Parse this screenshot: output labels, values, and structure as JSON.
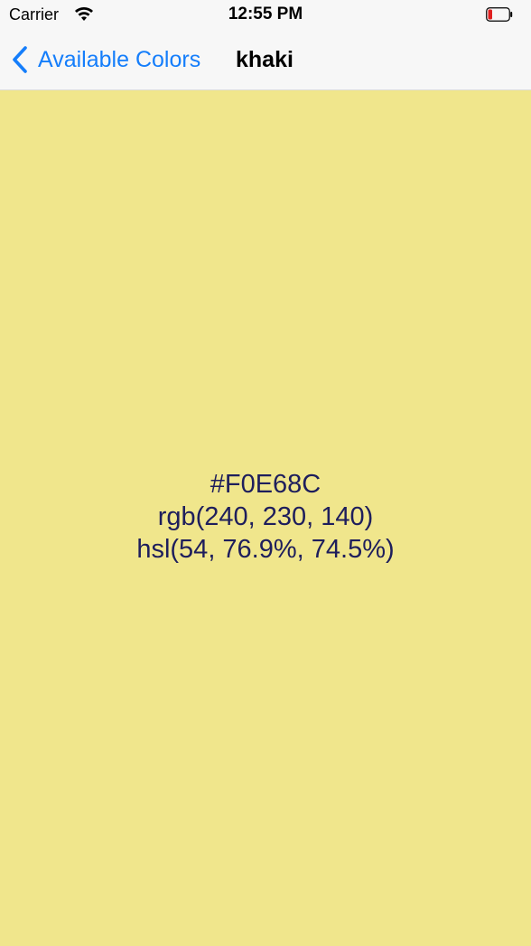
{
  "status_bar": {
    "carrier": "Carrier",
    "time": "12:55 PM",
    "battery_color": "#E02020"
  },
  "nav_bar": {
    "back_label": "Available Colors",
    "title": "khaki",
    "tint_color": "#157EFB"
  },
  "color": {
    "background": "#F0E68C",
    "hex": "#F0E68C",
    "rgb": "rgb(240, 230, 140)",
    "hsl": "hsl(54, 76.9%, 74.5%)",
    "text_color": "#1E1E5C"
  }
}
